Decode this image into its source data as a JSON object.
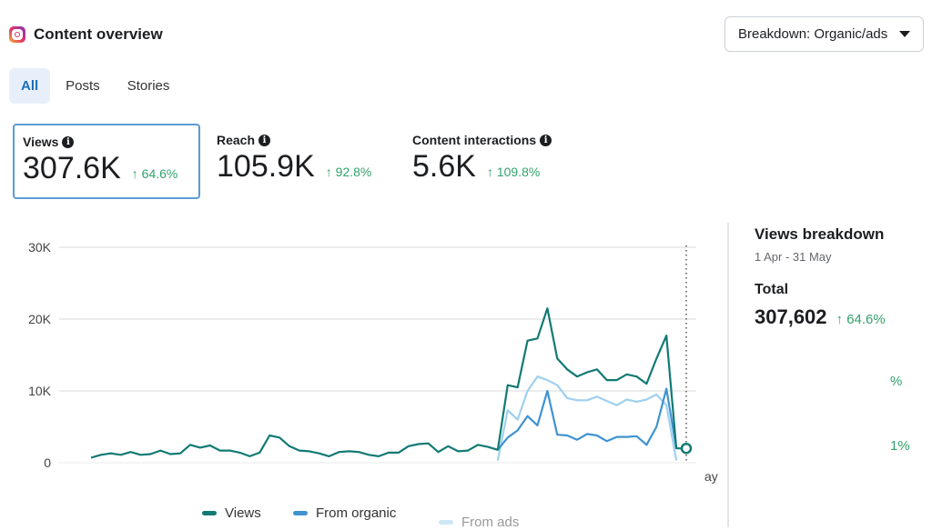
{
  "header": {
    "title": "Content overview",
    "icon": "instagram-icon",
    "breakdown_label": "Breakdown: Organic/ads"
  },
  "tabs": [
    {
      "label": "All",
      "active": true
    },
    {
      "label": "Posts"
    },
    {
      "label": "Stories"
    }
  ],
  "metrics": [
    {
      "label": "Views",
      "value": "307.6K",
      "delta": "↑ 64.6%",
      "selected": true
    },
    {
      "label": "Reach",
      "value": "105.9K",
      "delta": "↑ 92.8%"
    },
    {
      "label": "Content interactions",
      "value": "5.6K",
      "delta": "↑ 109.8%"
    }
  ],
  "breakdown": {
    "title": "Views breakdown",
    "date_range": "1 Apr - 31 May",
    "total_label": "Total",
    "total_value": "307,602",
    "total_delta": "↑ 64.6%",
    "fragment_1": "%",
    "fragment_2": "1%"
  },
  "colors": {
    "views": "#117a74",
    "organic": "#3f93d1",
    "ads": "#9fd0ee",
    "positive": "#31a36b"
  },
  "chart_data": {
    "type": "line",
    "x_range": [
      "1 Apr",
      "31 May"
    ],
    "x_tick_fragment": "ay",
    "ylim": [
      0,
      30000
    ],
    "y_ticks": [
      "0",
      "10K",
      "20K",
      "30K"
    ],
    "y_tick_values": [
      0,
      10000,
      20000,
      30000
    ],
    "legend_position": "bottom",
    "series": [
      {
        "name": "Views",
        "values": [
          700,
          1100,
          1300,
          1100,
          1500,
          1100,
          1200,
          1700,
          1200,
          1300,
          2500,
          2100,
          2400,
          1700,
          1700,
          1400,
          900,
          1400,
          3800,
          3500,
          2300,
          1700,
          1600,
          1300,
          900,
          1500,
          1600,
          1500,
          1100,
          900,
          1400,
          1400,
          2300,
          2600,
          2700,
          1500,
          2300,
          1600,
          1700,
          2500,
          2200,
          1800,
          10800,
          10500,
          17000,
          17300,
          21500,
          14500,
          13000,
          12000,
          12600,
          13000,
          11500,
          11500,
          12300,
          12000,
          11000,
          14500,
          17700,
          2000,
          2000
        ]
      },
      {
        "name": "From organic",
        "start_index": 41,
        "values": [
          1800,
          3500,
          4500,
          6500,
          5200,
          10000,
          3900,
          3800,
          3200,
          4000,
          3800,
          3000,
          3600,
          3600,
          3700,
          2500,
          5000,
          10300,
          2000
        ]
      },
      {
        "name": "From ads",
        "start_index": 41,
        "values": [
          300,
          7300,
          6000,
          10000,
          12000,
          11500,
          10800,
          9000,
          8700,
          8700,
          9200,
          8600,
          8000,
          8800,
          8500,
          8800,
          9500,
          8000,
          300
        ]
      }
    ]
  }
}
